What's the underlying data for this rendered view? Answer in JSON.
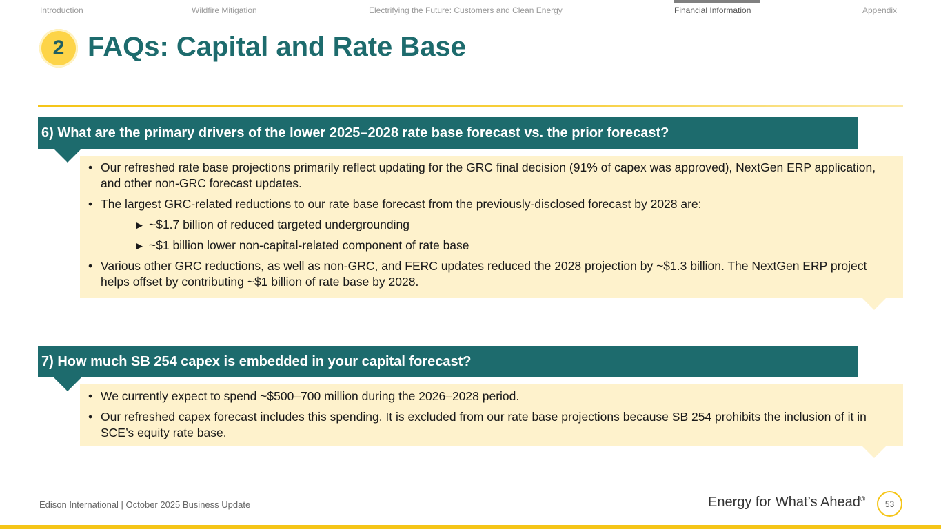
{
  "nav": {
    "items": [
      {
        "label": "Introduction"
      },
      {
        "label": "Wildfire Mitigation"
      },
      {
        "label": "Electrifying the Future: Customers and Clean Energy"
      },
      {
        "label": "Financial Information"
      },
      {
        "label": "Appendix"
      }
    ],
    "active": "Financial Information"
  },
  "header": {
    "section_number": "2",
    "title": "FAQs: Capital and Rate Base"
  },
  "faqs": [
    {
      "question": "6) What are the primary drivers of the lower 2025–2028 rate base forecast vs. the prior forecast?",
      "bullets": [
        "Our refreshed rate base projections primarily reflect updating for the GRC final decision (91% of capex was approved), NextGen ERP application, and other non-GRC forecast updates.",
        "The largest GRC-related reductions to our rate base forecast from the previously-disclosed forecast by 2028 are:",
        "Various other GRC reductions, as well as non-GRC, and FERC updates reduced the 2028 projection by ~$1.3 billion. The NextGen ERP project helps offset by contributing ~$1 billion of rate base by 2028."
      ],
      "sub_bullets": [
        "~$1.7 billion of reduced targeted undergrounding",
        "~$1 billion lower non-capital-related component of rate base"
      ]
    },
    {
      "question": "7) How much SB 254 capex is embedded in your capital forecast?",
      "bullets": [
        "We currently expect to spend ~$500–700 million during the 2026–2028 period.",
        "Our refreshed capex forecast includes this spending. It is excluded from our rate base projections because SB 254 prohibits the inclusion of it in SCE’s equity rate base."
      ]
    }
  ],
  "footer": {
    "company": "Edison International |  October 2025 Business Update",
    "tagline": "Energy for What’s Ahead",
    "tagline_mark": "®",
    "page_number": "53"
  },
  "colors": {
    "teal": "#1d6b6d",
    "gold": "#f5c518",
    "answer_bg": "#fef2cc"
  }
}
